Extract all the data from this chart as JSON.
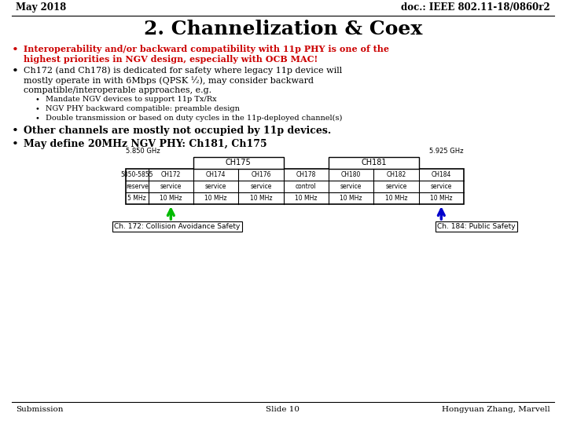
{
  "title": "2. Channelization & Coex",
  "header_left": "May 2018",
  "header_right": "doc.: IEEE 802.11-18/0860r2",
  "footer_left": "Submission",
  "footer_center": "Slide 10",
  "footer_right": "Hongyuan Zhang, Marvell",
  "b1_line1": "Interoperability and/or backward compatibility with 11p PHY is one of the",
  "b1_line2": "highest priorities in NGV design, especially with OCB MAC!",
  "b2_line1": "Ch172 (and Ch178) is dedicated for safety where legacy 11p device will",
  "b2_line2": "mostly operate in with 6Mbps (QPSK ½), may consider backward",
  "b2_line3": "compatible/interoperable approaches, e.g.",
  "sub_bullets": [
    "Mandate NGV devices to support 11p Tx/Rx",
    "NGV PHY backward compatible: preamble design",
    "Double transmission or based on duty cycles in the 11p-deployed channel(s)"
  ],
  "bullet3": "Other channels are mostly not occupied by 11p devices.",
  "bullet4": "May define 20MHz NGV PHY: Ch181, Ch175",
  "bg_color": "#ffffff",
  "text_color": "#000000",
  "red_color": "#cc0000",
  "table_left_label": "5.850 GHz",
  "table_right_label": "5.925 GHz",
  "ch175_label": "CH175",
  "ch181_label": "CH181",
  "col_headers": [
    "5850-5855",
    "CH172",
    "CH174",
    "CH176",
    "CH178",
    "CH180",
    "CH182",
    "CH184"
  ],
  "col_row2": [
    "reserve",
    "service",
    "service",
    "service",
    "control",
    "service",
    "service",
    "service"
  ],
  "col_row3": [
    "5 MHz",
    "10 MHz",
    "10 MHz",
    "10 MHz",
    "10 MHz",
    "10 MHz",
    "10 MHz",
    "10 MHz"
  ],
  "arrow1_label": "Ch. 172: Collision Avoidance Safety",
  "arrow2_label": "Ch. 184: Public Safety",
  "arrow1_color": "#00bb00",
  "arrow2_color": "#0000cc",
  "col_mhz": [
    5,
    10,
    10,
    10,
    10,
    10,
    10,
    10
  ]
}
